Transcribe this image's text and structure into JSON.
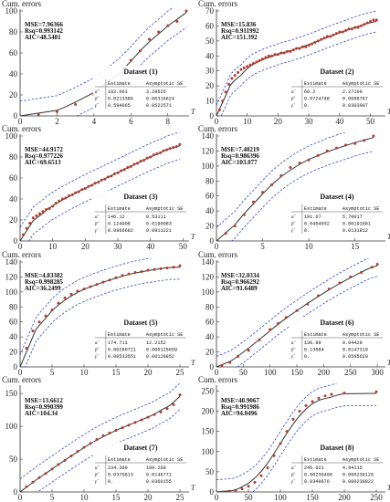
{
  "chart_data": [
    {
      "type": "scatter",
      "dataset_label": "Dataset (1)",
      "ylabel": "Cum. errors",
      "xlabel": "T",
      "xlim": [
        0,
        9
      ],
      "ylim": [
        0,
        100
      ],
      "xticks": [
        0,
        2,
        4,
        6,
        8
      ],
      "yticks": [
        0,
        20,
        40,
        60,
        80,
        100
      ],
      "stats": {
        "mse": "MSE=7.96366",
        "rsq": "Rsq=0.993142",
        "aic": "AIC=48.5481"
      },
      "fit": {
        "a": 102.061,
        "b": 0.0213386,
        "g": 0.594065
      },
      "band": 14,
      "points": [
        [
          1,
          1
        ],
        [
          2,
          4
        ],
        [
          3,
          11
        ],
        [
          4,
          20
        ],
        [
          5,
          30
        ],
        [
          5.5,
          42
        ],
        [
          6,
          53
        ],
        [
          6.5,
          62
        ],
        [
          7,
          73
        ],
        [
          7.5,
          80
        ],
        [
          8,
          86
        ],
        [
          8.5,
          90
        ],
        [
          9,
          100
        ]
      ],
      "table": {
        "headers": [
          "",
          "Estimate",
          "Asymptotic SE"
        ],
        "rows": [
          [
            "α̂",
            "102.061",
            "3.29625"
          ],
          [
            "β̂",
            "0.0213386",
            "0.00316624"
          ],
          [
            "γ̂",
            "0.594065",
            "0.0522571"
          ]
        ]
      }
    },
    {
      "type": "scatter",
      "dataset_label": "Dataset (2)",
      "ylabel": "Cum. errors",
      "xlabel": "T",
      "xlim": [
        0,
        54
      ],
      "ylim": [
        0,
        70
      ],
      "xticks": [
        0,
        10,
        20,
        30,
        40,
        50
      ],
      "yticks": [
        0,
        10,
        20,
        30,
        40,
        50,
        60,
        70
      ],
      "stats": {
        "mse": "MSE=15.836",
        "rsq": "Rsq=0.911992",
        "aic": "AIC=151.392"
      },
      "fit": {
        "a": 60.2,
        "b": 0.0724748,
        "g": 0.0
      },
      "band": 7,
      "points": [
        [
          1,
          4
        ],
        [
          2,
          10
        ],
        [
          3,
          16
        ],
        [
          4,
          21
        ],
        [
          5,
          25
        ],
        [
          6,
          27
        ],
        [
          7,
          29
        ],
        [
          8,
          31
        ],
        [
          9,
          32
        ],
        [
          10,
          33
        ],
        [
          11,
          34
        ],
        [
          12,
          35
        ],
        [
          13,
          36
        ],
        [
          14,
          37
        ],
        [
          15,
          38
        ],
        [
          16,
          39
        ],
        [
          17,
          40
        ],
        [
          18,
          40
        ],
        [
          19,
          41
        ],
        [
          20,
          41
        ],
        [
          21,
          42
        ],
        [
          22,
          42
        ],
        [
          23,
          43
        ],
        [
          24,
          43
        ],
        [
          25,
          44
        ],
        [
          26,
          45
        ],
        [
          27,
          45
        ],
        [
          28,
          46
        ],
        [
          29,
          46
        ],
        [
          30,
          47
        ],
        [
          31,
          48
        ],
        [
          32,
          49
        ],
        [
          33,
          50
        ],
        [
          34,
          51
        ],
        [
          35,
          52
        ],
        [
          36,
          53
        ],
        [
          37,
          53
        ],
        [
          38,
          54
        ],
        [
          39,
          55
        ],
        [
          40,
          56
        ],
        [
          41,
          56
        ],
        [
          42,
          57
        ],
        [
          43,
          58
        ],
        [
          44,
          58
        ],
        [
          45,
          59
        ],
        [
          46,
          59
        ],
        [
          47,
          60
        ],
        [
          48,
          61
        ],
        [
          49,
          62
        ],
        [
          50,
          63
        ],
        [
          51,
          64
        ],
        [
          52,
          64
        ]
      ],
      "table": {
        "headers": [
          "",
          "Estimate",
          "Asymptotic SE"
        ],
        "rows": [
          [
            "α̂",
            "60.2",
            "2.27109"
          ],
          [
            "β̂",
            "0.0724748",
            "0.0088767"
          ],
          [
            "γ̂",
            "0.",
            "0.0303007"
          ]
        ]
      }
    },
    {
      "type": "scatter",
      "dataset_label": "Dataset (3)",
      "ylabel": "Cum. errors",
      "xlabel": "T",
      "xlim": [
        0,
        51
      ],
      "ylim": [
        0,
        100
      ],
      "xticks": [
        0,
        10,
        20,
        30,
        40,
        50
      ],
      "yticks": [
        0,
        20,
        40,
        60,
        80,
        100
      ],
      "stats": {
        "mse": "MSE=44.9172",
        "rsq": "Rsq=0.977226",
        "aic": "AIC=69.6513"
      },
      "fit": {
        "a": 146.12,
        "b": 0.124908,
        "g": 0.0866682
      },
      "band": 13,
      "points": [
        [
          1,
          6
        ],
        [
          2,
          12
        ],
        [
          3,
          17
        ],
        [
          4,
          22
        ],
        [
          5,
          24
        ],
        [
          6,
          26
        ],
        [
          7,
          28
        ],
        [
          8,
          30
        ],
        [
          9,
          31
        ],
        [
          10,
          33
        ],
        [
          11,
          36
        ],
        [
          12,
          38
        ],
        [
          13,
          40
        ],
        [
          14,
          41
        ],
        [
          15,
          43
        ],
        [
          16,
          44
        ],
        [
          17,
          46
        ],
        [
          18,
          47
        ],
        [
          19,
          49
        ],
        [
          20,
          50
        ],
        [
          21,
          52
        ],
        [
          22,
          53
        ],
        [
          23,
          55
        ],
        [
          24,
          56
        ],
        [
          25,
          58
        ],
        [
          26,
          59
        ],
        [
          27,
          61
        ],
        [
          28,
          62
        ],
        [
          29,
          64
        ],
        [
          30,
          65
        ],
        [
          31,
          67
        ],
        [
          32,
          68
        ],
        [
          33,
          70
        ],
        [
          34,
          71
        ],
        [
          35,
          73
        ],
        [
          36,
          74
        ],
        [
          37,
          76
        ],
        [
          38,
          77
        ],
        [
          39,
          79
        ],
        [
          40,
          80
        ],
        [
          41,
          82
        ],
        [
          42,
          83
        ],
        [
          43,
          84
        ],
        [
          44,
          86
        ],
        [
          45,
          87
        ],
        [
          46,
          88
        ],
        [
          47,
          89
        ],
        [
          48,
          90
        ],
        [
          49,
          92
        ]
      ],
      "table": {
        "headers": [
          "",
          "Estimate",
          "Asymptotic SE"
        ],
        "rows": [
          [
            "α̂",
            "146.12",
            "9.53111"
          ],
          [
            "β̂",
            "0.124908",
            "0.0190083"
          ],
          [
            "γ̂",
            "0.0866682",
            "0.0911221"
          ]
        ]
      }
    },
    {
      "type": "scatter",
      "dataset_label": "Dataset (4)",
      "ylabel": "Cum. errors",
      "xlabel": "T",
      "xlim": [
        0,
        18
      ],
      "ylim": [
        0,
        140
      ],
      "xticks": [
        0,
        5,
        10,
        15
      ],
      "yticks": [
        0,
        20,
        40,
        60,
        80,
        100,
        120,
        140
      ],
      "stats": {
        "mse": "MSE=7.40219",
        "rsq": "Rsq=0.986396",
        "aic": "AIC=103.077"
      },
      "fit": {
        "a": 181.67,
        "b": 0.0454032,
        "g": 0.0
      },
      "band": 18,
      "points": [
        [
          1,
          10
        ],
        [
          2,
          20
        ],
        [
          3,
          35
        ],
        [
          4,
          52
        ],
        [
          5,
          65
        ],
        [
          6,
          75
        ],
        [
          7,
          87
        ],
        [
          8,
          98
        ],
        [
          9,
          104
        ],
        [
          10,
          108
        ],
        [
          11,
          114
        ],
        [
          12,
          120
        ],
        [
          13,
          124
        ],
        [
          14,
          128
        ],
        [
          15,
          130
        ],
        [
          16,
          134
        ],
        [
          17,
          140
        ]
      ],
      "table": {
        "headers": [
          "",
          "Estimate",
          "Asymptotic SE"
        ],
        "rows": [
          [
            "α̂",
            "181.67",
            "5.70017"
          ],
          [
            "β̂",
            "0.0454032",
            "0.00192681"
          ],
          [
            "γ̂",
            "0.",
            "0.0131812"
          ]
        ]
      }
    },
    {
      "type": "scatter",
      "dataset_label": "Dataset (5)",
      "ylabel": "Cum. errors",
      "xlabel": "T",
      "xlim": [
        0,
        26
      ],
      "ylim": [
        0,
        140
      ],
      "xticks": [
        0,
        5,
        10,
        15,
        20,
        25
      ],
      "yticks": [
        0,
        20,
        40,
        60,
        80,
        100,
        120,
        140
      ],
      "stats": {
        "mse": "MSE=4.83382",
        "rsq": "Rsq=0.998285",
        "aic": "AIC=36.2499"
      },
      "fit": {
        "a": 174.711,
        "b": 0.00280721,
        "g": 0.00533551
      },
      "band": 16,
      "points": [
        [
          1,
          25
        ],
        [
          2,
          48
        ],
        [
          3,
          60
        ],
        [
          4,
          68
        ],
        [
          5,
          76
        ],
        [
          6,
          85
        ],
        [
          7,
          92
        ],
        [
          8,
          97
        ],
        [
          9,
          101
        ],
        [
          10,
          104
        ],
        [
          11,
          107
        ],
        [
          12,
          110
        ],
        [
          13,
          113
        ],
        [
          14,
          116
        ],
        [
          15,
          119
        ],
        [
          16,
          122
        ],
        [
          17,
          124
        ],
        [
          18,
          126
        ],
        [
          19,
          127
        ],
        [
          20,
          129
        ],
        [
          21,
          130
        ],
        [
          22,
          131
        ],
        [
          23,
          132
        ],
        [
          24,
          133
        ],
        [
          25,
          135
        ]
      ],
      "table": {
        "headers": [
          "",
          "Estimate",
          "Asymptotic SE"
        ],
        "rows": [
          [
            "α̂",
            "174.711",
            "12.2152"
          ],
          [
            "β̂",
            "0.00280721",
            "0.000125659"
          ],
          [
            "γ̂",
            "0.00533551",
            "0.00128852"
          ]
        ]
      }
    },
    {
      "type": "scatter",
      "dataset_label": "Dataset (6)",
      "ylabel": "Cum. errors",
      "xlabel": "T",
      "xlim": [
        0,
        310
      ],
      "ylim": [
        0,
        140
      ],
      "xticks": [
        0,
        50,
        100,
        150,
        200,
        250,
        300
      ],
      "yticks": [
        0,
        20,
        40,
        60,
        80,
        100,
        120,
        140
      ],
      "stats": {
        "mse": "MSE=32.0334",
        "rsq": "Rsq=0.966292",
        "aic": "AIC=91.6489"
      },
      "fit": {
        "a": 136.89,
        "b": 0.13584,
        "g": 0.0
      },
      "band": 14,
      "points": [
        [
          10,
          2
        ],
        [
          25,
          6
        ],
        [
          40,
          14
        ],
        [
          60,
          22
        ],
        [
          80,
          36
        ],
        [
          100,
          50
        ],
        [
          115,
          58
        ],
        [
          130,
          66
        ],
        [
          150,
          75
        ],
        [
          170,
          84
        ],
        [
          190,
          95
        ],
        [
          210,
          104
        ],
        [
          230,
          112
        ],
        [
          250,
          120
        ],
        [
          270,
          126
        ],
        [
          290,
          133
        ],
        [
          300,
          137
        ]
      ],
      "table": {
        "headers": [
          "",
          "Estimate",
          "Asymptotic SE"
        ],
        "rows": [
          [
            "α̂",
            "136.89",
            "0.04428"
          ],
          [
            "β̂",
            "0.13584",
            "0.0147319"
          ],
          [
            "γ̂",
            "0.",
            "0.0565629"
          ]
        ]
      }
    },
    {
      "type": "scatter",
      "dataset_label": "Dataset (7)",
      "ylabel": "Cum. errors",
      "xlabel": "T",
      "xlim": [
        0,
        26
      ],
      "ylim": [
        0,
        160
      ],
      "xticks": [
        0,
        5,
        10,
        15,
        20,
        25
      ],
      "yticks": [
        0,
        50,
        100,
        150
      ],
      "stats": {
        "mse": "MSE=13.6612",
        "rsq": "Rsq=0.990399",
        "aic": "AIC=104.34"
      },
      "fit": {
        "a": 234.369,
        "b": 0.0376813,
        "g": 0.0
      },
      "band": 20,
      "points": [
        [
          1,
          8
        ],
        [
          2,
          15
        ],
        [
          3,
          22
        ],
        [
          4,
          28
        ],
        [
          5,
          35
        ],
        [
          6,
          42
        ],
        [
          7,
          48
        ],
        [
          8,
          55
        ],
        [
          9,
          62
        ],
        [
          10,
          68
        ],
        [
          11,
          74
        ],
        [
          12,
          80
        ],
        [
          13,
          86
        ],
        [
          14,
          90
        ],
        [
          15,
          94
        ],
        [
          16,
          98
        ],
        [
          17,
          102
        ],
        [
          18,
          106
        ],
        [
          19,
          110
        ],
        [
          20,
          114
        ],
        [
          21,
          118
        ],
        [
          22,
          122
        ],
        [
          23,
          127
        ],
        [
          24,
          133
        ],
        [
          25,
          148
        ]
      ],
      "table": {
        "headers": [
          "",
          "Estimate",
          "Asymptotic SE"
        ],
        "rows": [
          [
            "α̂",
            "234.369",
            "109.268"
          ],
          [
            "β̂",
            "0.0376813",
            "0.0146771"
          ],
          [
            "γ̂",
            "0.",
            "0.0360155"
          ]
        ]
      }
    },
    {
      "type": "scatter",
      "dataset_label": "Dataset (8)",
      "ylabel": "Cum. errors",
      "xlabel": "T",
      "xlim": [
        0,
        260
      ],
      "ylim": [
        0,
        260
      ],
      "xticks": [
        0,
        50,
        100,
        150,
        200,
        250
      ],
      "yticks": [
        0,
        50,
        100,
        150,
        200,
        250
      ],
      "stats": {
        "mse": "MSE=40.9067",
        "rsq": "Rsq=0.991986",
        "aic": "AIC=94.0496"
      },
      "fit": {
        "a": 245.021,
        "b": 0.00235408,
        "g": 0.0349676
      },
      "band": 30,
      "points": [
        [
          10,
          0
        ],
        [
          20,
          2
        ],
        [
          30,
          4
        ],
        [
          40,
          8
        ],
        [
          50,
          14
        ],
        [
          60,
          24
        ],
        [
          70,
          40
        ],
        [
          80,
          60
        ],
        [
          90,
          90
        ],
        [
          100,
          120
        ],
        [
          110,
          150
        ],
        [
          120,
          180
        ],
        [
          130,
          200
        ],
        [
          140,
          214
        ],
        [
          150,
          224
        ],
        [
          160,
          232
        ],
        [
          170,
          238
        ],
        [
          180,
          242
        ],
        [
          200,
          245
        ],
        [
          250,
          248
        ]
      ],
      "table": {
        "headers": [
          "",
          "Estimate",
          "Asymptotic SE"
        ],
        "rows": [
          [
            "α̂",
            "245.021",
            "4.94115"
          ],
          [
            "β̂",
            "0.00235408",
            "0.000239126"
          ],
          [
            "γ̂",
            "0.0349676",
            "0.000239822"
          ]
        ]
      }
    }
  ]
}
